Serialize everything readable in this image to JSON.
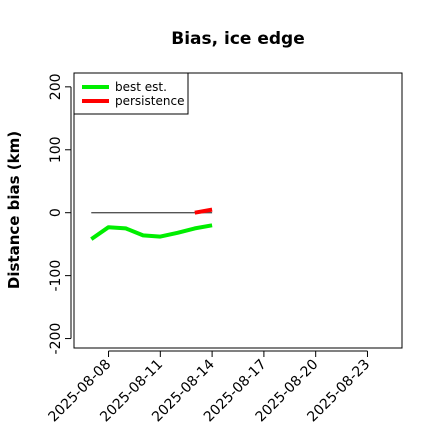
{
  "chart_data": {
    "type": "line",
    "title": "Bias, ice edge",
    "xlabel": "",
    "ylabel": "Distance bias (km)",
    "xlim": [
      "2025-08-06",
      "2025-08-25"
    ],
    "ylim": [
      -215,
      222
    ],
    "x_ticks": [
      "2025-08-08",
      "2025-08-11",
      "2025-08-14",
      "2025-08-17",
      "2025-08-20",
      "2025-08-23"
    ],
    "y_ticks": [
      -200,
      -100,
      0,
      100,
      200
    ],
    "reference_line": {
      "y": 0,
      "x_start": "2025-08-07",
      "x_end": "2025-08-14",
      "color": "#555555"
    },
    "legend": {
      "position": "top-left"
    },
    "series": [
      {
        "name": "best est.",
        "color": "#00ee00",
        "x": [
          "2025-08-07",
          "2025-08-08",
          "2025-08-09",
          "2025-08-10",
          "2025-08-11",
          "2025-08-12",
          "2025-08-13",
          "2025-08-14"
        ],
        "y": [
          -42,
          -23,
          -25,
          -36,
          -38,
          -32,
          -25,
          -20
        ]
      },
      {
        "name": "persistence",
        "color": "#ff0000",
        "x": [
          "2025-08-13",
          "2025-08-14"
        ],
        "y": [
          0,
          5
        ]
      }
    ]
  }
}
